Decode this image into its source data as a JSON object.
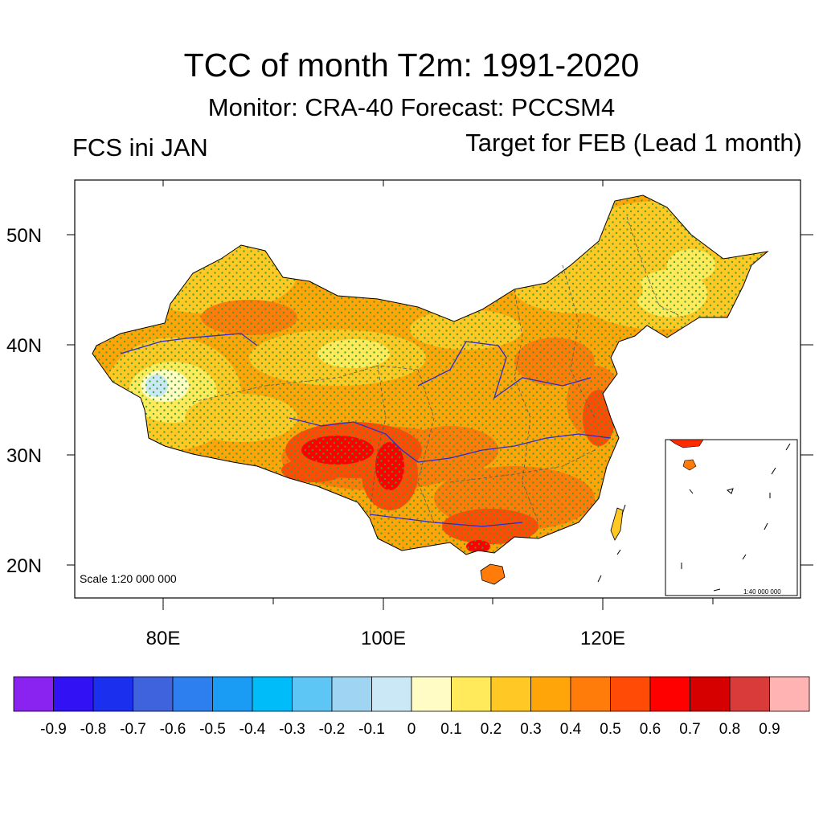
{
  "title": "TCC of month T2m: 1991-2020",
  "subtitle": "Monitor: CRA-40   Forecast: PCCSM4",
  "left_label": "FCS ini JAN",
  "right_label": "Target for FEB (Lead 1 month)",
  "map": {
    "region": "China",
    "scale_main": "Scale 1:20 000 000",
    "scale_inset": "1:40 000 000",
    "lat_labels": [
      "50N",
      "40N",
      "30N",
      "20N"
    ],
    "lon_labels": [
      "80E",
      "100E",
      "120E"
    ],
    "stipple_color": "#3aa02e"
  },
  "colorbar": {
    "labels": [
      "-0.9",
      "-0.8",
      "-0.7",
      "-0.6",
      "-0.5",
      "-0.4",
      "-0.3",
      "-0.2",
      "-0.1",
      "0",
      "0.1",
      "0.2",
      "0.3",
      "0.4",
      "0.5",
      "0.6",
      "0.7",
      "0.8",
      "0.9"
    ],
    "colors": [
      "#8a22f0",
      "#3311f5",
      "#1a30ee",
      "#3f63dc",
      "#2d7ff0",
      "#1a9cf5",
      "#00bdfa",
      "#5ec6f4",
      "#9fd5f2",
      "#cbe8f7",
      "#fffcc6",
      "#ffea5c",
      "#ffc824",
      "#ffa50a",
      "#ff7c0a",
      "#ff4b05",
      "#ff0000",
      "#d60000",
      "#d93a3a",
      "#ffb3b3"
    ]
  }
}
